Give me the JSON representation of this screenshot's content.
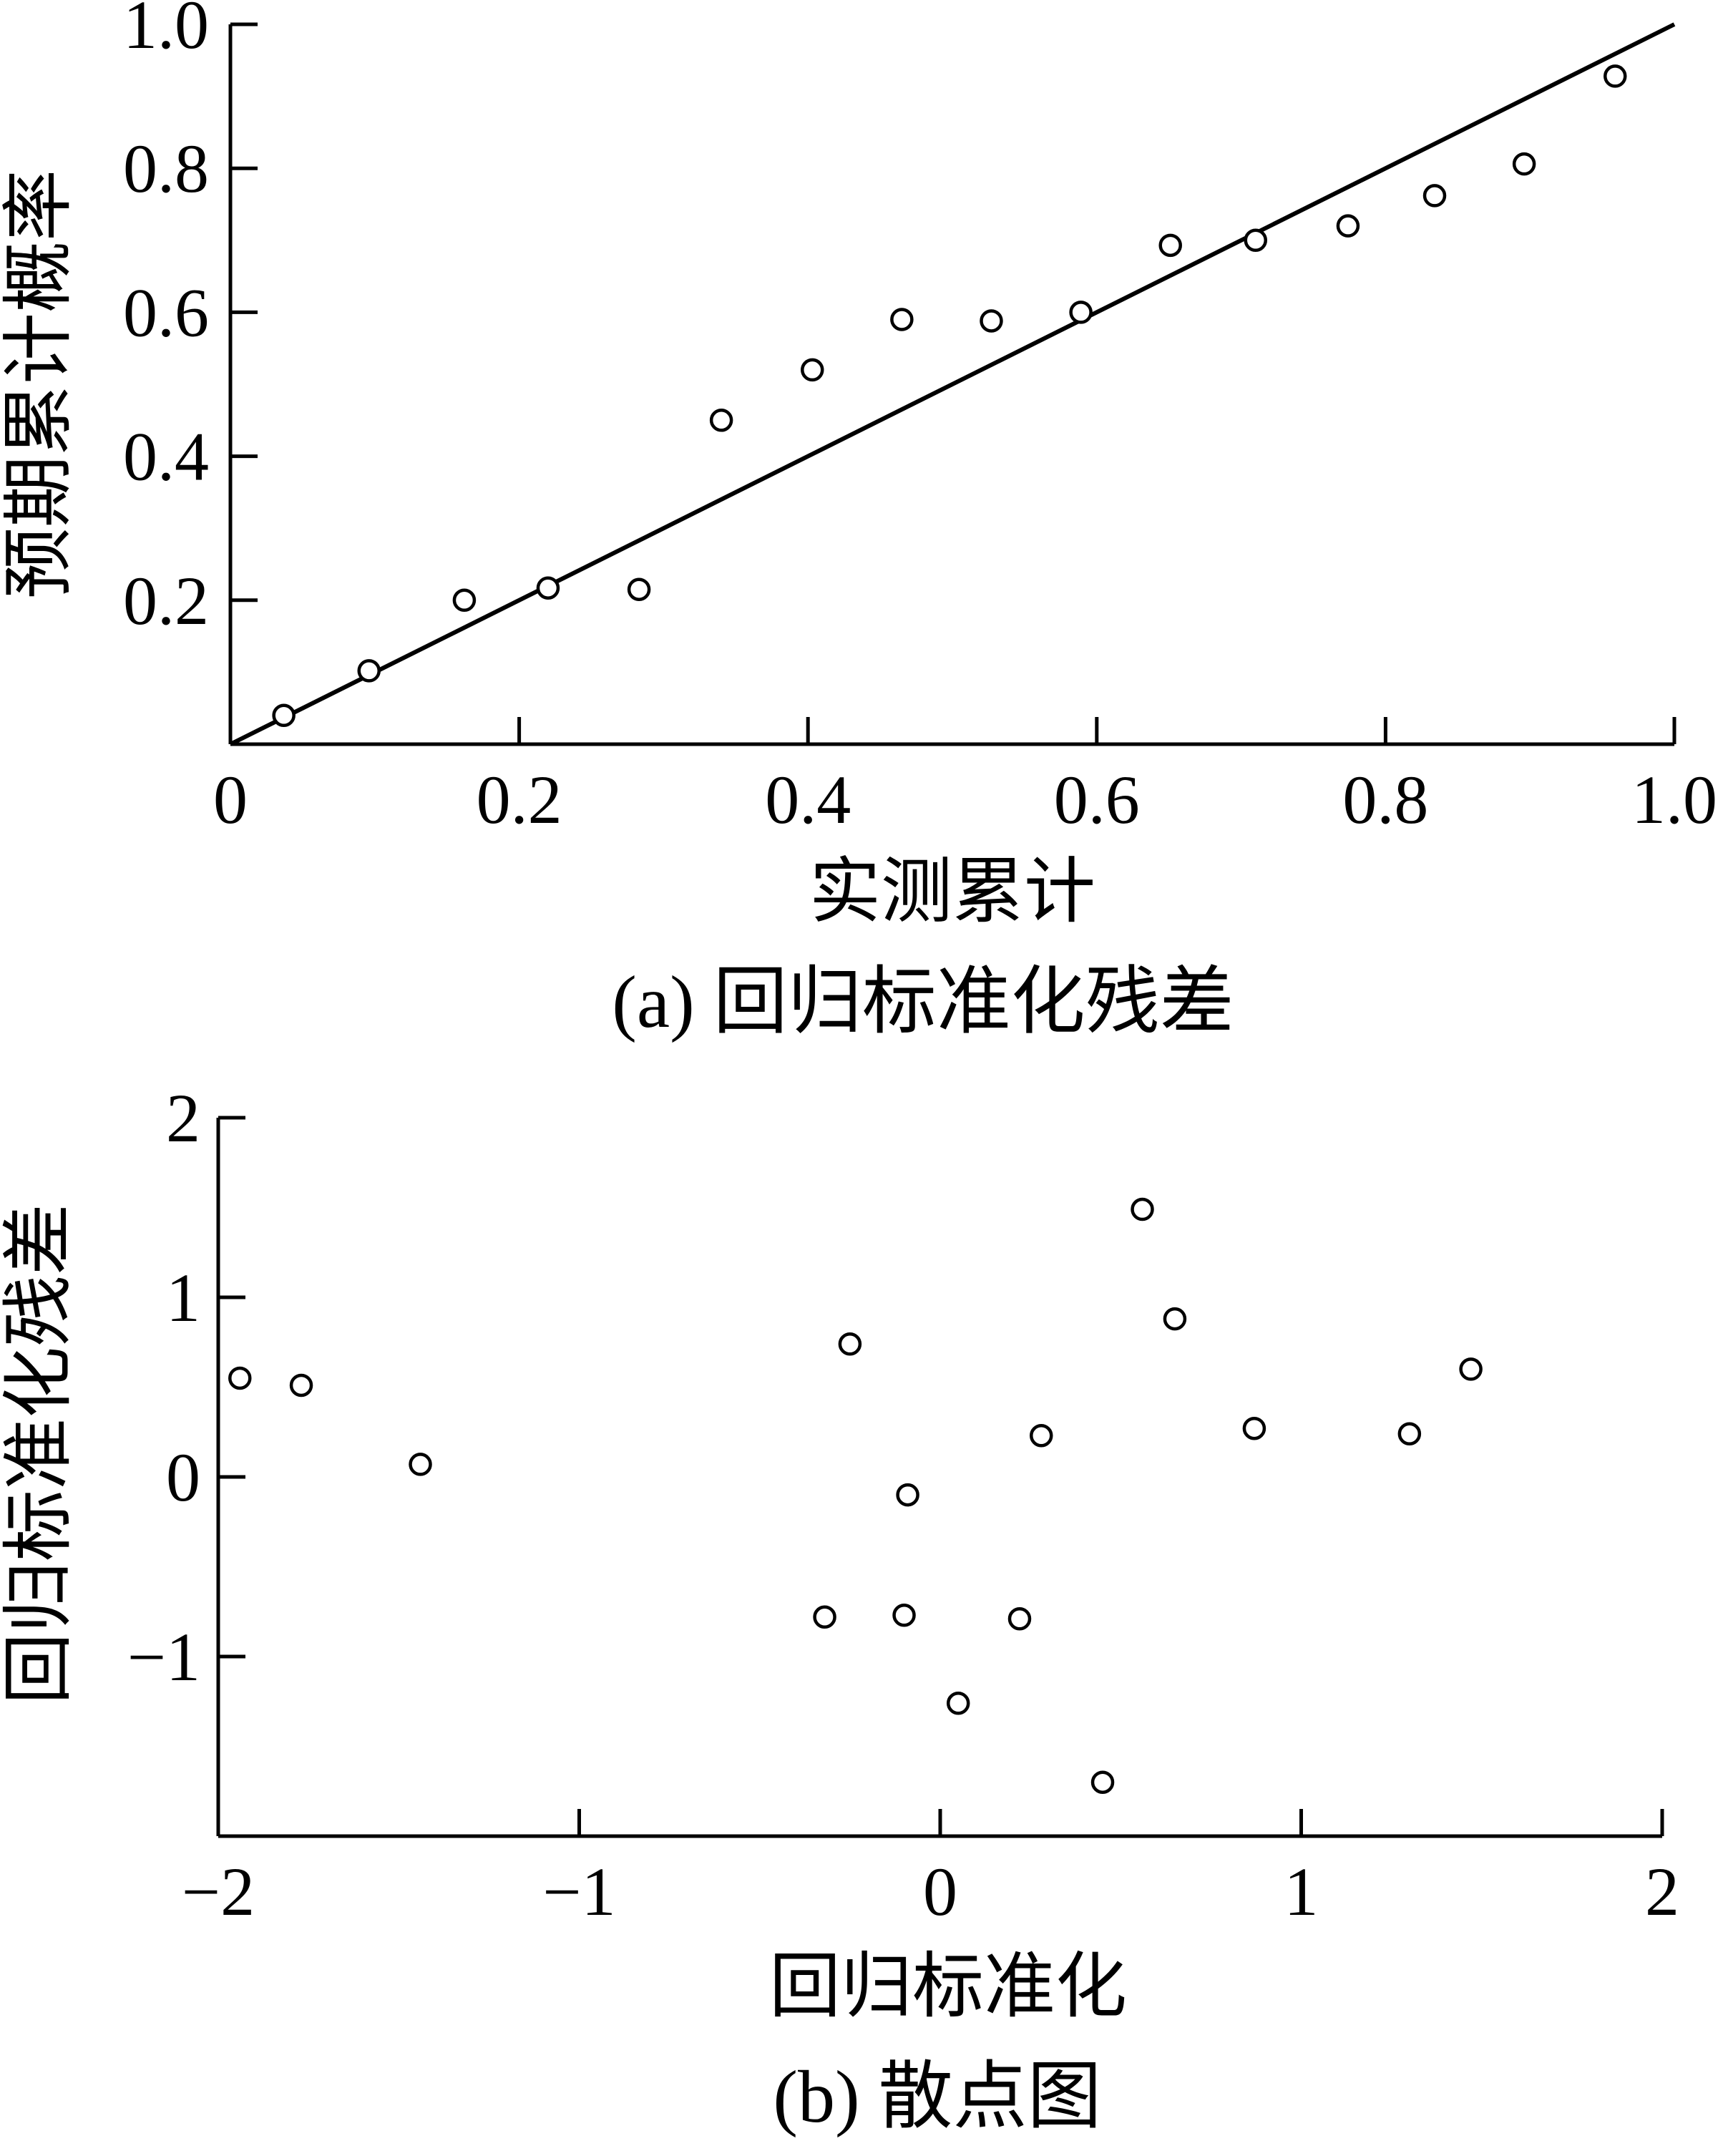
{
  "chart_data": [
    {
      "type": "line",
      "subtype": "P-P plot",
      "caption": "(a) 回归标准化残差",
      "xlabel": "实测累计",
      "ylabel": "预期累计概率",
      "xlim": [
        0,
        1.0
      ],
      "ylim": [
        0,
        1.0
      ],
      "x_ticks": [
        0,
        0.2,
        0.4,
        0.6,
        0.8,
        1.0
      ],
      "x_tick_labels": [
        "0",
        "0.2",
        "0.4",
        "0.6",
        "0.8",
        "1.0"
      ],
      "y_ticks": [
        0.2,
        0.4,
        0.6,
        0.8,
        1.0
      ],
      "y_tick_labels": [
        "0.2",
        "0.4",
        "0.6",
        "0.8",
        "1.0"
      ],
      "grid": false,
      "reference_line": {
        "x": [
          0,
          1.0
        ],
        "y": [
          0,
          1.0
        ]
      },
      "points": [
        {
          "x": 0.037,
          "y": 0.04
        },
        {
          "x": 0.096,
          "y": 0.102
        },
        {
          "x": 0.162,
          "y": 0.2
        },
        {
          "x": 0.22,
          "y": 0.217
        },
        {
          "x": 0.283,
          "y": 0.215
        },
        {
          "x": 0.34,
          "y": 0.45
        },
        {
          "x": 0.403,
          "y": 0.52
        },
        {
          "x": 0.465,
          "y": 0.59
        },
        {
          "x": 0.527,
          "y": 0.588
        },
        {
          "x": 0.589,
          "y": 0.6
        },
        {
          "x": 0.651,
          "y": 0.693
        },
        {
          "x": 0.71,
          "y": 0.7
        },
        {
          "x": 0.774,
          "y": 0.72
        },
        {
          "x": 0.834,
          "y": 0.762
        },
        {
          "x": 0.896,
          "y": 0.806
        },
        {
          "x": 0.959,
          "y": 0.928
        }
      ]
    },
    {
      "type": "scatter",
      "caption": "(b) 散点图",
      "xlabel": "回归标准化",
      "ylabel": "回归标准化残差",
      "xlim": [
        -2,
        2
      ],
      "ylim": [
        -2,
        2
      ],
      "x_ticks": [
        -2,
        -1,
        0,
        1,
        2
      ],
      "x_tick_labels": [
        "−2",
        "−1",
        "0",
        "1",
        "2"
      ],
      "y_ticks": [
        -1,
        0,
        1,
        2
      ],
      "y_tick_labels": [
        "−1",
        "0",
        "1",
        "2"
      ],
      "grid": false,
      "points": [
        {
          "x": -1.94,
          "y": 0.55
        },
        {
          "x": -1.77,
          "y": 0.51
        },
        {
          "x": -1.44,
          "y": 0.07
        },
        {
          "x": -0.32,
          "y": -0.78
        },
        {
          "x": -0.25,
          "y": 0.74
        },
        {
          "x": -0.1,
          "y": -0.77
        },
        {
          "x": -0.09,
          "y": -0.1
        },
        {
          "x": 0.05,
          "y": -1.26
        },
        {
          "x": 0.22,
          "y": -0.79
        },
        {
          "x": 0.28,
          "y": 0.23
        },
        {
          "x": 0.45,
          "y": -1.7
        },
        {
          "x": 0.56,
          "y": 1.49
        },
        {
          "x": 0.65,
          "y": 0.88
        },
        {
          "x": 0.87,
          "y": 0.27
        },
        {
          "x": 1.3,
          "y": 0.24
        },
        {
          "x": 1.47,
          "y": 0.6
        }
      ]
    }
  ]
}
